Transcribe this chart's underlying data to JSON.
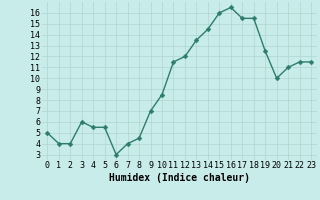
{
  "x": [
    0,
    1,
    2,
    3,
    4,
    5,
    6,
    7,
    8,
    9,
    10,
    11,
    12,
    13,
    14,
    15,
    16,
    17,
    18,
    19,
    20,
    21,
    22,
    23
  ],
  "y": [
    5,
    4,
    4,
    6,
    5.5,
    5.5,
    3,
    4,
    4.5,
    7,
    8.5,
    11.5,
    12,
    13.5,
    14.5,
    16,
    16.5,
    15.5,
    15.5,
    12.5,
    10,
    11,
    11.5,
    11.5
  ],
  "line_color": "#2d7d6e",
  "marker_color": "#2d7d6e",
  "bg_color": "#c8ecea",
  "grid_color": "#b0d4d0",
  "xlabel": "Humidex (Indice chaleur)",
  "ylabel_ticks": [
    3,
    4,
    5,
    6,
    7,
    8,
    9,
    10,
    11,
    12,
    13,
    14,
    15,
    16
  ],
  "ylim": [
    2.5,
    17.0
  ],
  "xlim": [
    -0.5,
    23.5
  ],
  "xticks": [
    0,
    1,
    2,
    3,
    4,
    5,
    6,
    7,
    8,
    9,
    10,
    11,
    12,
    13,
    14,
    15,
    16,
    17,
    18,
    19,
    20,
    21,
    22,
    23
  ],
  "tick_fontsize": 6,
  "xlabel_fontsize": 7,
  "marker_size": 2.5,
  "line_width": 1.0
}
